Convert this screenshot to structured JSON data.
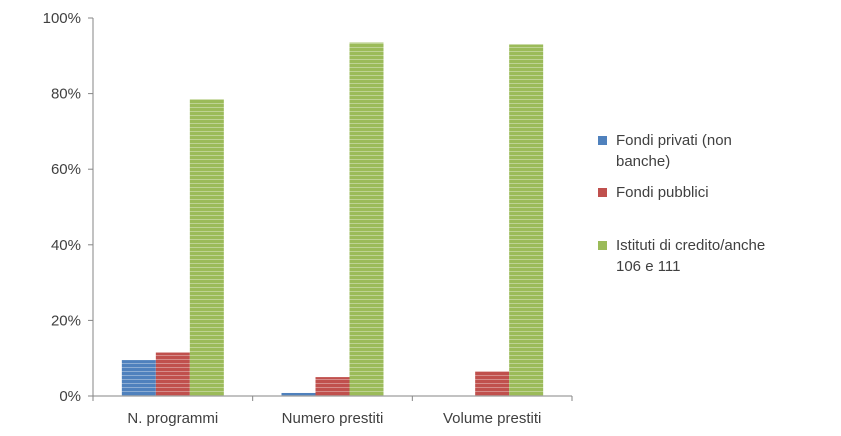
{
  "chart_data": {
    "type": "bar",
    "categories": [
      "N. programmi",
      "Numero prestiti",
      "Volume prestiti"
    ],
    "series": [
      {
        "name": "Fondi privati (non banche)",
        "color": "#4F81BD",
        "values": [
          9.5,
          0.8,
          0
        ]
      },
      {
        "name": "Fondi pubblici",
        "color": "#C0504D",
        "values": [
          11.5,
          5.0,
          6.5
        ]
      },
      {
        "name": "Istituti di credito/anche 106 e 111",
        "color": "#9BBB59",
        "values": [
          78.5,
          93.5,
          93.0
        ]
      }
    ],
    "yticks": [
      "0%",
      "20%",
      "40%",
      "60%",
      "80%",
      "100%"
    ],
    "ylim": [
      0,
      100
    ],
    "title": "",
    "xlabel": "",
    "ylabel": "",
    "grid": false,
    "legend_position": "right",
    "legend_lines": [
      [
        "Fondi privati (non",
        "banche)"
      ],
      [
        "Fondi pubblici"
      ],
      [
        "Istituti di credito/anche",
        "106 e 111"
      ]
    ],
    "bar_pattern": "horizontal-stripes"
  }
}
